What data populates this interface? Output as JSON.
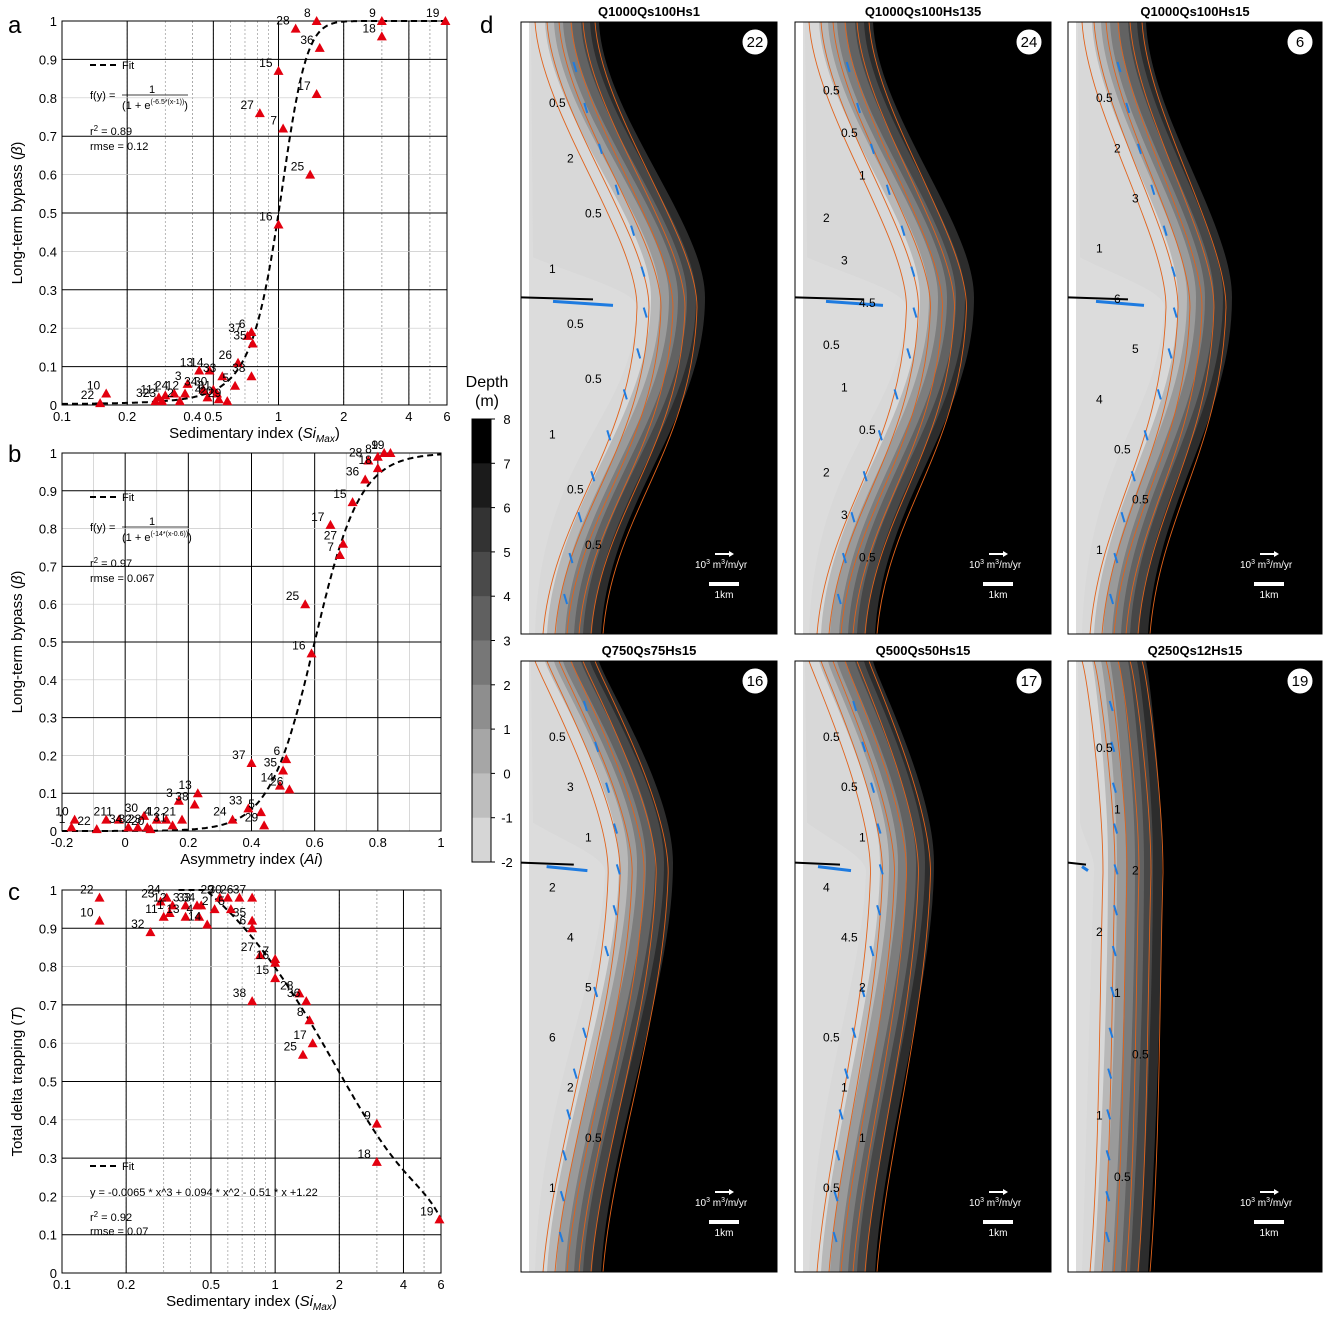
{
  "panel_letters": [
    "a",
    "b",
    "c",
    "d"
  ],
  "legend_fit": "Fit",
  "chart_data": [
    {
      "id": "a",
      "type": "scatter",
      "xscale": "log",
      "xlim": [
        0.1,
        6
      ],
      "ylim": [
        0,
        1
      ],
      "xticks": [
        0.1,
        0.2,
        0.4,
        0.5,
        1,
        2,
        4,
        6
      ],
      "xtick_labels": [
        "0.1",
        "0.2",
        "0.4",
        "0.5",
        "1",
        "2",
        "4",
        "6"
      ],
      "yticks": [
        0,
        0.1,
        0.2,
        0.3,
        0.4,
        0.5,
        0.6,
        0.7,
        0.8,
        0.9,
        1
      ],
      "ytick_labels": [
        "0",
        "0.1",
        "0.2",
        "0.3",
        "0.4",
        "0.5",
        "0.6",
        "0.7",
        "0.8",
        "0.9",
        "1"
      ],
      "xlabel": "Sedimentary index (",
      "xlabel_var": "Si",
      "xlabel_sub": "Max",
      "xlabel_end": ")",
      "ylabel": "Long-term bypass (",
      "ylabel_var": "β",
      "ylabel_end": ")",
      "fit": {
        "kind": "logistic",
        "k": 6.5,
        "x0": 1,
        "xvar": "log"
      },
      "fit_eq_prefix": "f(y) = ",
      "fit_eq_num": "1",
      "fit_eq_den": "(1 + e",
      "fit_eq_exp": "(-6.5*(x-1))",
      "fit_eq_close": ")",
      "r2_label": "r",
      "r2_value": " = 0.89",
      "rmse": "rmse = 0.12",
      "points": [
        {
          "id": "22",
          "x": 0.15,
          "y": 0.005
        },
        {
          "id": "10",
          "x": 0.16,
          "y": 0.03
        },
        {
          "id": "32",
          "x": 0.27,
          "y": 0.01
        },
        {
          "id": "11",
          "x": 0.28,
          "y": 0.02
        },
        {
          "id": "1",
          "x": 0.3,
          "y": 0.025
        },
        {
          "id": "23",
          "x": 0.29,
          "y": 0.01
        },
        {
          "id": "24",
          "x": 0.33,
          "y": 0.03
        },
        {
          "id": "2",
          "x": 0.35,
          "y": 0.01
        },
        {
          "id": "12",
          "x": 0.37,
          "y": 0.03
        },
        {
          "id": "3",
          "x": 0.38,
          "y": 0.055
        },
        {
          "id": "13",
          "x": 0.43,
          "y": 0.09
        },
        {
          "id": "34",
          "x": 0.45,
          "y": 0.04
        },
        {
          "id": "4",
          "x": 0.47,
          "y": 0.02
        },
        {
          "id": "14",
          "x": 0.48,
          "y": 0.09
        },
        {
          "id": "30",
          "x": 0.5,
          "y": 0.04
        },
        {
          "id": "31",
          "x": 0.52,
          "y": 0.03
        },
        {
          "id": "33",
          "x": 0.55,
          "y": 0.075
        },
        {
          "id": "20",
          "x": 0.53,
          "y": 0.015
        },
        {
          "id": "29",
          "x": 0.58,
          "y": 0.01
        },
        {
          "id": "5",
          "x": 0.63,
          "y": 0.05
        },
        {
          "id": "26",
          "x": 0.65,
          "y": 0.11
        },
        {
          "id": "38",
          "x": 0.75,
          "y": 0.075
        },
        {
          "id": "37",
          "x": 0.72,
          "y": 0.18
        },
        {
          "id": "6",
          "x": 0.75,
          "y": 0.19
        },
        {
          "id": "35",
          "x": 0.76,
          "y": 0.16
        },
        {
          "id": "16",
          "x": 1.0,
          "y": 0.47
        },
        {
          "id": "25",
          "x": 1.4,
          "y": 0.6
        },
        {
          "id": "7",
          "x": 1.05,
          "y": 0.72
        },
        {
          "id": "27",
          "x": 0.82,
          "y": 0.76
        },
        {
          "id": "15",
          "x": 1.0,
          "y": 0.87
        },
        {
          "id": "17",
          "x": 1.5,
          "y": 0.81
        },
        {
          "id": "36",
          "x": 1.55,
          "y": 0.93
        },
        {
          "id": "28",
          "x": 1.2,
          "y": 0.98
        },
        {
          "id": "8",
          "x": 1.5,
          "y": 1.0
        },
        {
          "id": "9",
          "x": 3.0,
          "y": 1.0
        },
        {
          "id": "18",
          "x": 3.0,
          "y": 0.96
        },
        {
          "id": "19",
          "x": 5.9,
          "y": 1.0
        }
      ]
    },
    {
      "id": "b",
      "type": "scatter",
      "xscale": "linear",
      "xlim": [
        -0.2,
        1
      ],
      "ylim": [
        0,
        1
      ],
      "xticks": [
        -0.2,
        0,
        0.2,
        0.4,
        0.6,
        0.8,
        1
      ],
      "xtick_labels": [
        "-0.2",
        "0",
        "0.2",
        "0.4",
        "0.6",
        "0.8",
        "1"
      ],
      "yticks": [
        0,
        0.1,
        0.2,
        0.3,
        0.4,
        0.5,
        0.6,
        0.7,
        0.8,
        0.9,
        1
      ],
      "ytick_labels": [
        "0",
        "0.1",
        "0.2",
        "0.3",
        "0.4",
        "0.5",
        "0.6",
        "0.7",
        "0.8",
        "0.9",
        "1"
      ],
      "xlabel": "Asymmetry index (",
      "xlabel_var": "Ai",
      "xlabel_end": ")",
      "ylabel": "Long-term bypass (",
      "ylabel_var": "β",
      "ylabel_end": ")",
      "fit": {
        "kind": "logistic",
        "k": 14,
        "x0": 0.6,
        "xvar": "linear"
      },
      "fit_eq_prefix": "f(y) = ",
      "fit_eq_num": "1",
      "fit_eq_den": "(1 + e",
      "fit_eq_exp": "(-14*(x-0.6))",
      "fit_eq_close": ")",
      "r2_label": "r",
      "r2_value": " = 0.97",
      "rmse": "rmse = 0.067",
      "points": [
        {
          "id": "1",
          "x": -0.17,
          "y": 0.01
        },
        {
          "id": "10",
          "x": -0.16,
          "y": 0.03
        },
        {
          "id": "22",
          "x": -0.09,
          "y": 0.005
        },
        {
          "id": "2",
          "x": -0.06,
          "y": 0.03
        },
        {
          "id": "11",
          "x": -0.02,
          "y": 0.03
        },
        {
          "id": "34",
          "x": 0.01,
          "y": 0.01
        },
        {
          "id": "32",
          "x": 0.04,
          "y": 0.01
        },
        {
          "id": "30",
          "x": 0.06,
          "y": 0.04
        },
        {
          "id": "23",
          "x": 0.07,
          "y": 0.01
        },
        {
          "id": "20",
          "x": 0.08,
          "y": 0.005
        },
        {
          "id": "4",
          "x": 0.1,
          "y": 0.03
        },
        {
          "id": "12",
          "x": 0.13,
          "y": 0.03
        },
        {
          "id": "31",
          "x": 0.15,
          "y": 0.015
        },
        {
          "id": "3",
          "x": 0.17,
          "y": 0.08
        },
        {
          "id": "21",
          "x": 0.18,
          "y": 0.03
        },
        {
          "id": "13",
          "x": 0.23,
          "y": 0.1
        },
        {
          "id": "38",
          "x": 0.22,
          "y": 0.07
        },
        {
          "id": "24",
          "x": 0.34,
          "y": 0.03
        },
        {
          "id": "33",
          "x": 0.39,
          "y": 0.06
        },
        {
          "id": "5",
          "x": 0.43,
          "y": 0.05
        },
        {
          "id": "29",
          "x": 0.44,
          "y": 0.015
        },
        {
          "id": "14",
          "x": 0.49,
          "y": 0.12
        },
        {
          "id": "26",
          "x": 0.52,
          "y": 0.11
        },
        {
          "id": "35",
          "x": 0.5,
          "y": 0.16
        },
        {
          "id": "6",
          "x": 0.51,
          "y": 0.19
        },
        {
          "id": "37",
          "x": 0.4,
          "y": 0.18
        },
        {
          "id": "25",
          "x": 0.57,
          "y": 0.6
        },
        {
          "id": "16",
          "x": 0.59,
          "y": 0.47
        },
        {
          "id": "7",
          "x": 0.68,
          "y": 0.73
        },
        {
          "id": "27",
          "x": 0.69,
          "y": 0.76
        },
        {
          "id": "17",
          "x": 0.65,
          "y": 0.81
        },
        {
          "id": "15",
          "x": 0.72,
          "y": 0.87
        },
        {
          "id": "36",
          "x": 0.76,
          "y": 0.93
        },
        {
          "id": "28",
          "x": 0.77,
          "y": 0.98
        },
        {
          "id": "8",
          "x": 0.8,
          "y": 0.99
        },
        {
          "id": "18",
          "x": 0.8,
          "y": 0.96
        },
        {
          "id": "9",
          "x": 0.82,
          "y": 1.0
        },
        {
          "id": "19",
          "x": 0.84,
          "y": 1.0
        }
      ]
    },
    {
      "id": "c",
      "type": "scatter",
      "xscale": "log",
      "xlim": [
        0.1,
        6
      ],
      "ylim": [
        0,
        1
      ],
      "xticks": [
        0.1,
        0.2,
        0.5,
        1,
        2,
        4,
        6
      ],
      "xtick_labels": [
        "0.1",
        "0.2",
        "0.5",
        "1",
        "2",
        "4",
        "6"
      ],
      "yticks": [
        0,
        0.1,
        0.2,
        0.3,
        0.4,
        0.5,
        0.6,
        0.7,
        0.8,
        0.9,
        1
      ],
      "ytick_labels": [
        "0",
        "0.1",
        "0.2",
        "0.3",
        "0.4",
        "0.5",
        "0.6",
        "0.7",
        "0.8",
        "0.9",
        "1"
      ],
      "xlabel": "Sedimentary index (",
      "xlabel_var": "Si",
      "xlabel_sub": "Max",
      "xlabel_end": ")",
      "ylabel": "Total delta trapping (",
      "ylabel_var": "T",
      "ylabel_end": ")",
      "fit": {
        "kind": "poly",
        "coef": [
          -0.0065,
          0.094,
          -0.51,
          1.22
        ]
      },
      "fit_eq": "y = -0.0065 * x^3 + 0.094 * x^2 - 0.51 * x +1.22",
      "r2_label": "r",
      "r2_value": " = 0.92",
      "rmse": "rmse = 0.07",
      "points": [
        {
          "id": "22",
          "x": 0.15,
          "y": 0.98
        },
        {
          "id": "10",
          "x": 0.15,
          "y": 0.92
        },
        {
          "id": "32",
          "x": 0.26,
          "y": 0.89
        },
        {
          "id": "23",
          "x": 0.29,
          "y": 0.97
        },
        {
          "id": "24",
          "x": 0.31,
          "y": 0.98
        },
        {
          "id": "11",
          "x": 0.3,
          "y": 0.93
        },
        {
          "id": "1",
          "x": 0.32,
          "y": 0.94
        },
        {
          "id": "12",
          "x": 0.33,
          "y": 0.96
        },
        {
          "id": "13",
          "x": 0.38,
          "y": 0.93
        },
        {
          "id": "3",
          "x": 0.38,
          "y": 0.96
        },
        {
          "id": "33",
          "x": 0.43,
          "y": 0.96
        },
        {
          "id": "34",
          "x": 0.45,
          "y": 0.96
        },
        {
          "id": "4",
          "x": 0.44,
          "y": 0.93
        },
        {
          "id": "14",
          "x": 0.48,
          "y": 0.91
        },
        {
          "id": "2",
          "x": 0.52,
          "y": 0.95
        },
        {
          "id": "29",
          "x": 0.55,
          "y": 0.98
        },
        {
          "id": "30",
          "x": 0.6,
          "y": 0.98
        },
        {
          "id": "26",
          "x": 0.68,
          "y": 0.98
        },
        {
          "id": "5",
          "x": 0.62,
          "y": 0.95
        },
        {
          "id": "37",
          "x": 0.78,
          "y": 0.98
        },
        {
          "id": "35",
          "x": 0.78,
          "y": 0.92
        },
        {
          "id": "6",
          "x": 0.78,
          "y": 0.9
        },
        {
          "id": "27",
          "x": 0.85,
          "y": 0.83
        },
        {
          "id": "7",
          "x": 1.0,
          "y": 0.82
        },
        {
          "id": "16",
          "x": 1.0,
          "y": 0.81
        },
        {
          "id": "15",
          "x": 1.0,
          "y": 0.77
        },
        {
          "id": "38",
          "x": 0.78,
          "y": 0.71
        },
        {
          "id": "28",
          "x": 1.3,
          "y": 0.73
        },
        {
          "id": "36",
          "x": 1.4,
          "y": 0.71
        },
        {
          "id": "8",
          "x": 1.45,
          "y": 0.66
        },
        {
          "id": "17",
          "x": 1.5,
          "y": 0.6
        },
        {
          "id": "25",
          "x": 1.35,
          "y": 0.57
        },
        {
          "id": "9",
          "x": 3.0,
          "y": 0.39
        },
        {
          "id": "18",
          "x": 3.0,
          "y": 0.29
        },
        {
          "id": "19",
          "x": 5.9,
          "y": 0.14
        }
      ]
    }
  ],
  "colorbar": {
    "title_line1": "Depth",
    "title_line2": "(m)",
    "levels": [
      "8",
      "7",
      "6",
      "5",
      "4",
      "3",
      "2",
      "1",
      "0",
      "-1",
      "-2"
    ],
    "colors": [
      "#000000",
      "#1b1b1b",
      "#333333",
      "#4a4a4a",
      "#606060",
      "#777777",
      "#8e8e8e",
      "#a6a6a6",
      "#bebebe",
      "#d6d6d6"
    ]
  },
  "maps": [
    {
      "title": "Q1000Qs100Hs1",
      "badge": "22",
      "variant": "a"
    },
    {
      "title": "Q1000Qs100Hs135",
      "badge": "24",
      "variant": "b"
    },
    {
      "title": "Q1000Qs100Hs15",
      "badge": "6",
      "variant": "c"
    },
    {
      "title": "Q750Qs75Hs15",
      "badge": "16",
      "variant": "d"
    },
    {
      "title": "Q500Qs50Hs15",
      "badge": "17",
      "variant": "e"
    },
    {
      "title": "Q250Qs12Hs15",
      "badge": "19",
      "variant": "f"
    }
  ],
  "map_scale": {
    "vector_label": "10",
    "vector_sup": "3",
    "vector_unit": " m",
    "vector_unit_sup": "3",
    "vector_tail": "/m/yr",
    "scale_label": "1km"
  },
  "map_contours": {
    "a": [
      "0.5",
      "2",
      "0.5",
      "1",
      "0.5",
      "0.5",
      "1",
      "0.5",
      "0.5"
    ],
    "b": [
      "0.5",
      "0.5",
      "1",
      "2",
      "3",
      "4.5",
      "0.5",
      "1",
      "0.5",
      "2",
      "3",
      "0.5"
    ],
    "c": [
      "0.5",
      "2",
      "3",
      "1",
      "6",
      "5",
      "4",
      "0.5",
      "0.5",
      "1"
    ],
    "d": [
      "0.5",
      "3",
      "1",
      "2",
      "4",
      "5",
      "6",
      "2",
      "0.5",
      "1"
    ],
    "e": [
      "0.5",
      "0.5",
      "1",
      "4",
      "4.5",
      "2",
      "0.5",
      "1",
      "1",
      "0.5"
    ],
    "f": [
      "0.5",
      "1",
      "2",
      "2",
      "1",
      "0.5",
      "1",
      "0.5"
    ]
  }
}
